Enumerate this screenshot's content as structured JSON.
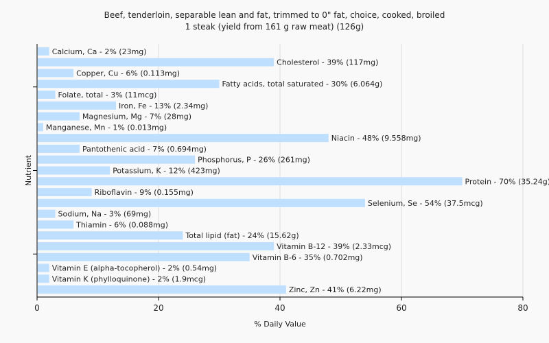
{
  "colors": {
    "bar": "#bfdfff",
    "grid": "#dddddd",
    "axis": "#000000",
    "background": "#f9f9f9",
    "text": "#222222"
  },
  "chart_data": {
    "type": "bar",
    "orientation": "horizontal",
    "title": "Beef, tenderloin, separable lean and fat, trimmed to 0\" fat, choice, cooked, broiled",
    "subtitle": "1 steak (yield from 161 g raw meat) (126g)",
    "xlabel": "% Daily Value",
    "ylabel": "Nutrient",
    "xlim": [
      0,
      80
    ],
    "xticks": [
      0,
      20,
      40,
      60,
      80
    ],
    "grid": true,
    "categories": [
      "Calcium, Ca",
      "Cholesterol",
      "Copper, Cu",
      "Fatty acids, total saturated",
      "Folate, total",
      "Iron, Fe",
      "Magnesium, Mg",
      "Manganese, Mn",
      "Niacin",
      "Pantothenic acid",
      "Phosphorus, P",
      "Potassium, K",
      "Protein",
      "Riboflavin",
      "Selenium, Se",
      "Sodium, Na",
      "Thiamin",
      "Total lipid (fat)",
      "Vitamin B-12",
      "Vitamin B-6",
      "Vitamin E (alpha-tocopherol)",
      "Vitamin K (phylloquinone)",
      "Zinc, Zn"
    ],
    "values": [
      2,
      39,
      6,
      30,
      3,
      13,
      7,
      1,
      48,
      7,
      26,
      12,
      70,
      9,
      54,
      3,
      6,
      24,
      39,
      35,
      2,
      2,
      41
    ],
    "labels": [
      "Calcium, Ca - 2% (23mg)",
      "Cholesterol - 39% (117mg)",
      "Copper, Cu - 6% (0.113mg)",
      "Fatty acids, total saturated - 30% (6.064g)",
      "Folate, total - 3% (11mcg)",
      "Iron, Fe - 13% (2.34mg)",
      "Magnesium, Mg - 7% (28mg)",
      "Manganese, Mn - 1% (0.013mg)",
      "Niacin - 48% (9.558mg)",
      "Pantothenic acid - 7% (0.694mg)",
      "Phosphorus, P - 26% (261mg)",
      "Potassium, K - 12% (423mg)",
      "Protein - 70% (35.24g)",
      "Riboflavin - 9% (0.155mg)",
      "Selenium, Se - 54% (37.5mcg)",
      "Sodium, Na - 3% (69mg)",
      "Thiamin - 6% (0.088mg)",
      "Total lipid (fat) - 24% (15.62g)",
      "Vitamin B-12 - 39% (2.33mcg)",
      "Vitamin B-6 - 35% (0.702mg)",
      "Vitamin E (alpha-tocopherol) - 2% (0.54mg)",
      "Vitamin K (phylloquinone) - 2% (1.9mcg)",
      "Zinc, Zn - 41% (6.22mg)"
    ]
  }
}
